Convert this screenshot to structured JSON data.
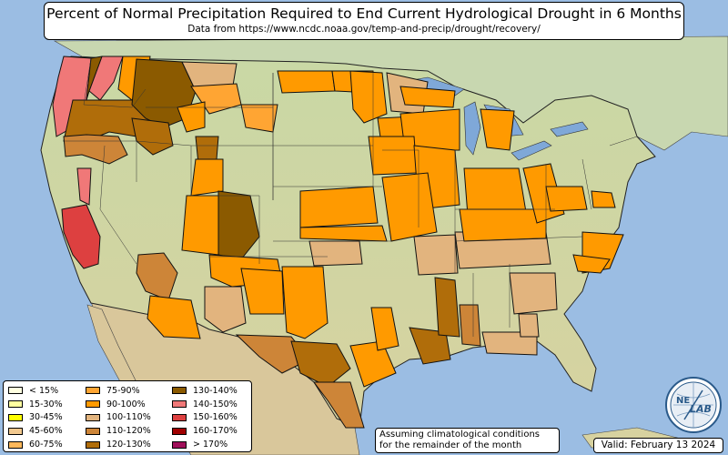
{
  "title": "Percent of Normal Precipitation Required to End Current Hydrological Drought in 6 Months",
  "subtitle": "Data from https://www.ncdc.noaa.gov/temp-and-precip/drought/recovery/",
  "note": {
    "line1": "Assuming climatological conditions",
    "line2": "for the remainder of the month"
  },
  "valid": "Valid: February 13 2024",
  "logo": {
    "text1": "NE",
    "text2": "LAB"
  },
  "colors": {
    "ocean": "#9bbde3",
    "lakes": "#7fa8d8",
    "land_south": "#d7d5a6",
    "land_north": "#c6d9a4",
    "land_canada": "#c8d7b0",
    "land_mexico": "#d9c79b"
  },
  "legend": {
    "columns": [
      [
        {
          "label": "< 15%",
          "color": "#ffffe0"
        },
        {
          "label": "15-30%",
          "color": "#ffffa0"
        },
        {
          "label": "30-45%",
          "color": "#ffff00"
        },
        {
          "label": "45-60%",
          "color": "#f2c98f"
        },
        {
          "label": "60-75%",
          "color": "#ffb85a"
        }
      ],
      [
        {
          "label": "75-90%",
          "color": "#ffa533"
        },
        {
          "label": "90-100%",
          "color": "#ff9a00"
        },
        {
          "label": "100-110%",
          "color": "#e2b47e"
        },
        {
          "label": "110-120%",
          "color": "#cd8538"
        },
        {
          "label": "120-130%",
          "color": "#b06d0a"
        }
      ],
      [
        {
          "label": "130-140%",
          "color": "#8b5a00"
        },
        {
          "label": "140-150%",
          "color": "#f07878"
        },
        {
          "label": "150-160%",
          "color": "#dd4040"
        },
        {
          "label": "160-170%",
          "color": "#a00000"
        },
        {
          "label": "> 170%",
          "color": "#a0105a"
        }
      ]
    ]
  }
}
